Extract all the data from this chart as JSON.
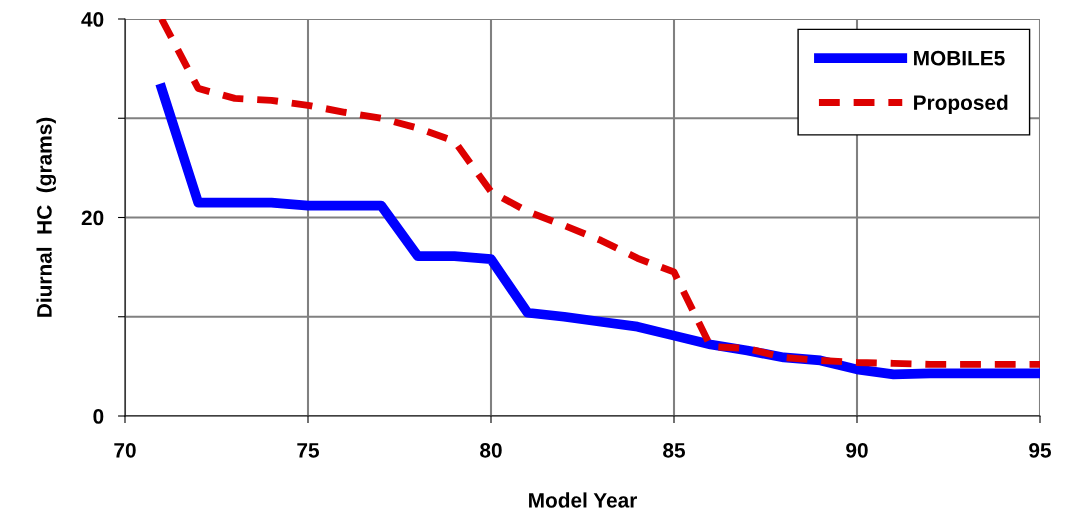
{
  "chart_data": {
    "type": "line",
    "xlabel": "Model Year",
    "ylabel": "Diurnal  HC  (grams)",
    "xlim": [
      70,
      95
    ],
    "xticks": [
      70,
      75,
      80,
      85,
      90,
      95
    ],
    "ylim": [
      0,
      40
    ],
    "yticks": [
      0,
      {
        "value": 10,
        "label": null
      },
      20,
      {
        "value": 30,
        "label": null
      },
      40
    ],
    "grid": true,
    "legend": "top right",
    "marker": "none",
    "series": [
      {
        "name": "MOBILE5",
        "color": "#0000ff",
        "line_style": "solid",
        "x": [
          71,
          72,
          73,
          74,
          75,
          76,
          77,
          78,
          79,
          80,
          81,
          82,
          83,
          84,
          85,
          86,
          87,
          88,
          89,
          90,
          91,
          92,
          93,
          94,
          95
        ],
        "values": [
          33,
          21.5,
          21.5,
          21.5,
          21.2,
          21.2,
          21.2,
          16.1,
          16.1,
          15.8,
          10.4,
          10,
          9.5,
          9,
          8.1,
          7.2,
          6.6,
          5.9,
          5.6,
          4.7,
          4.2,
          4.3,
          4.3,
          4.3,
          4.3
        ]
      },
      {
        "name": "Proposed",
        "color": "#dd0000",
        "line_style": "dashed",
        "x": [
          71,
          72,
          73,
          74,
          75,
          76,
          77,
          78,
          79,
          80,
          81,
          82,
          83,
          84,
          85,
          86,
          87,
          88,
          89,
          90,
          91,
          92,
          93,
          94,
          95
        ],
        "values": [
          40,
          33,
          32,
          31.8,
          31.3,
          30.6,
          30,
          29,
          27.7,
          22.6,
          20.6,
          19.2,
          17.7,
          15.9,
          14.5,
          7,
          6.8,
          5.9,
          5.6,
          5.4,
          5.3,
          5.2,
          5.2,
          5.2,
          5.2
        ]
      }
    ]
  }
}
